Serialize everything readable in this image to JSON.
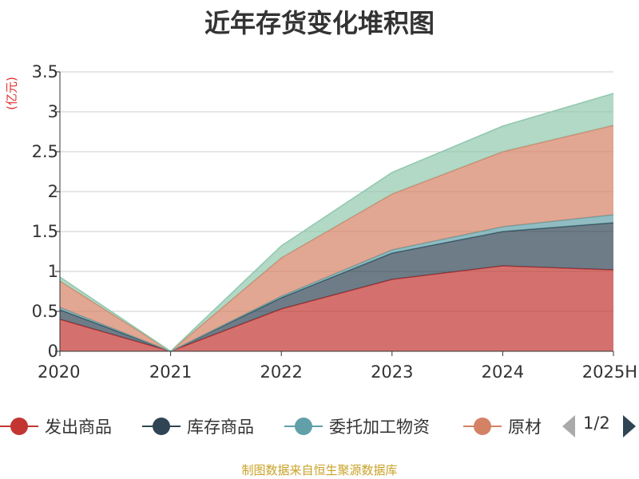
{
  "chart_data": {
    "type": "area",
    "stacked": true,
    "title": "近年存货变化堆积图",
    "unit": "(亿元)",
    "x": [
      "2020",
      "2021",
      "2022",
      "2023",
      "2024",
      "2025H"
    ],
    "ylim": [
      0,
      3.5
    ],
    "yticks": [
      "0",
      "0.5",
      "1",
      "1.5",
      "2",
      "2.5",
      "3",
      "3.5"
    ],
    "grid": true,
    "legend_position": "bottom",
    "series": [
      {
        "name": "发出商品",
        "color": "#c23531",
        "values": [
          0.4,
          0,
          0.53,
          0.9,
          1.07,
          1.02
        ]
      },
      {
        "name": "库存商品",
        "color": "#2f4554",
        "values": [
          0.12,
          0,
          0.14,
          0.33,
          0.43,
          0.59
        ]
      },
      {
        "name": "委托加工物资",
        "color": "#61a0a8",
        "values": [
          0.03,
          0,
          0.02,
          0.04,
          0.06,
          0.1
        ]
      },
      {
        "name": "原材料",
        "color": "#d48265",
        "values": [
          0.33,
          0,
          0.48,
          0.7,
          0.94,
          1.12
        ]
      },
      {
        "name": "",
        "color": "#91c7ae",
        "values": [
          0.05,
          0,
          0.15,
          0.27,
          0.32,
          0.4
        ]
      }
    ]
  },
  "legend": {
    "items": [
      "发出商品",
      "库存商品",
      "委托加工物资",
      "原材"
    ],
    "pager": "1/2"
  },
  "source_note": "制图数据来自恒生聚源数据库"
}
